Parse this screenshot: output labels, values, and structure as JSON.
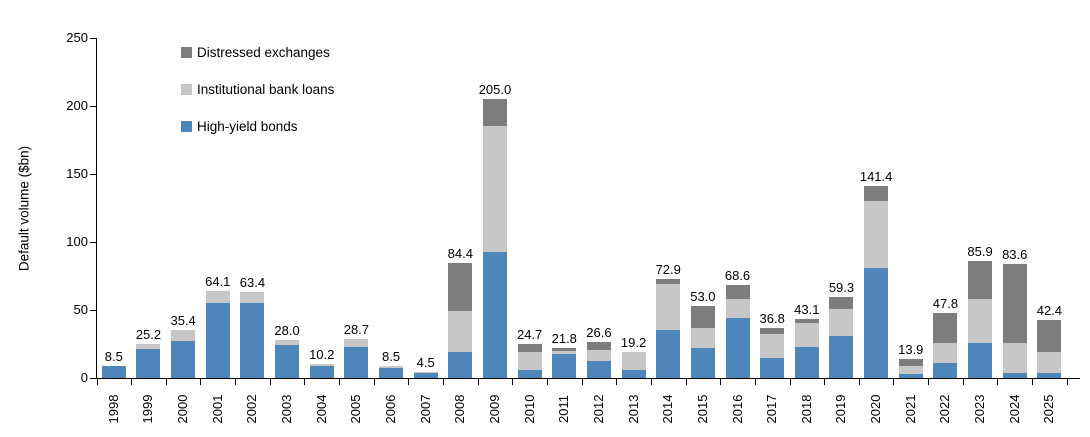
{
  "chart_data": {
    "type": "bar",
    "subtype": "stacked",
    "title": "",
    "ylabel": "Default volume ($bn)",
    "xlabel": "",
    "ylim": [
      0,
      250
    ],
    "yticks": [
      0,
      50,
      100,
      150,
      200,
      250
    ],
    "grid": false,
    "legend_position": "top-left-inside",
    "categories": [
      "1998",
      "1999",
      "2000",
      "2001",
      "2002",
      "2003",
      "2004",
      "2005",
      "2006",
      "2007",
      "2008",
      "2009",
      "2010",
      "2011",
      "2012",
      "2013",
      "2014",
      "2015",
      "2016",
      "2017",
      "2018",
      "2019",
      "2020",
      "2021",
      "2022",
      "2023",
      "2024",
      "2025"
    ],
    "totals": [
      8.5,
      25.2,
      35.4,
      64.1,
      63.4,
      28.0,
      10.2,
      28.7,
      8.5,
      4.5,
      84.4,
      205.0,
      24.7,
      21.8,
      26.6,
      19.2,
      72.9,
      53.0,
      68.6,
      36.8,
      43.1,
      59.3,
      141.4,
      13.9,
      47.8,
      85.9,
      83.6,
      42.4
    ],
    "series": [
      {
        "name": "High-yield bonds",
        "color": "#4e86ba",
        "values": [
          8.5,
          21.0,
          27.0,
          55.5,
          55.0,
          24.0,
          8.7,
          22.5,
          7.3,
          3.5,
          19.0,
          92.5,
          6.0,
          17.5,
          12.5,
          5.8,
          35.0,
          22.0,
          44.0,
          14.8,
          22.5,
          31.0,
          81.0,
          3.0,
          11.0,
          26.0,
          4.0,
          4.0
        ]
      },
      {
        "name": "Institutional bank loans",
        "color": "#c7c7c7",
        "values": [
          0,
          4.2,
          8.4,
          8.6,
          8.4,
          4.0,
          1.5,
          6.2,
          1.2,
          1.0,
          30.0,
          92.5,
          13.2,
          2.5,
          8.2,
          13.4,
          34.0,
          15.0,
          14.0,
          17.7,
          18.0,
          20.0,
          49.0,
          6.0,
          15.0,
          32.0,
          22.0,
          15.0
        ]
      },
      {
        "name": "Distressed exchanges",
        "color": "#7d7d7d",
        "values": [
          0,
          0,
          0,
          0,
          0,
          0,
          0,
          0,
          0,
          0,
          35.4,
          20.0,
          5.5,
          1.8,
          5.9,
          0,
          3.9,
          16.0,
          10.6,
          4.3,
          2.6,
          8.3,
          11.4,
          4.9,
          21.8,
          27.9,
          57.6,
          23.4
        ]
      }
    ],
    "legend": [
      {
        "label": "Distressed exchanges",
        "color": "#7d7d7d"
      },
      {
        "label": "Institutional bank loans",
        "color": "#c7c7c7"
      },
      {
        "label": "High-yield bonds",
        "color": "#4e86ba"
      }
    ]
  }
}
